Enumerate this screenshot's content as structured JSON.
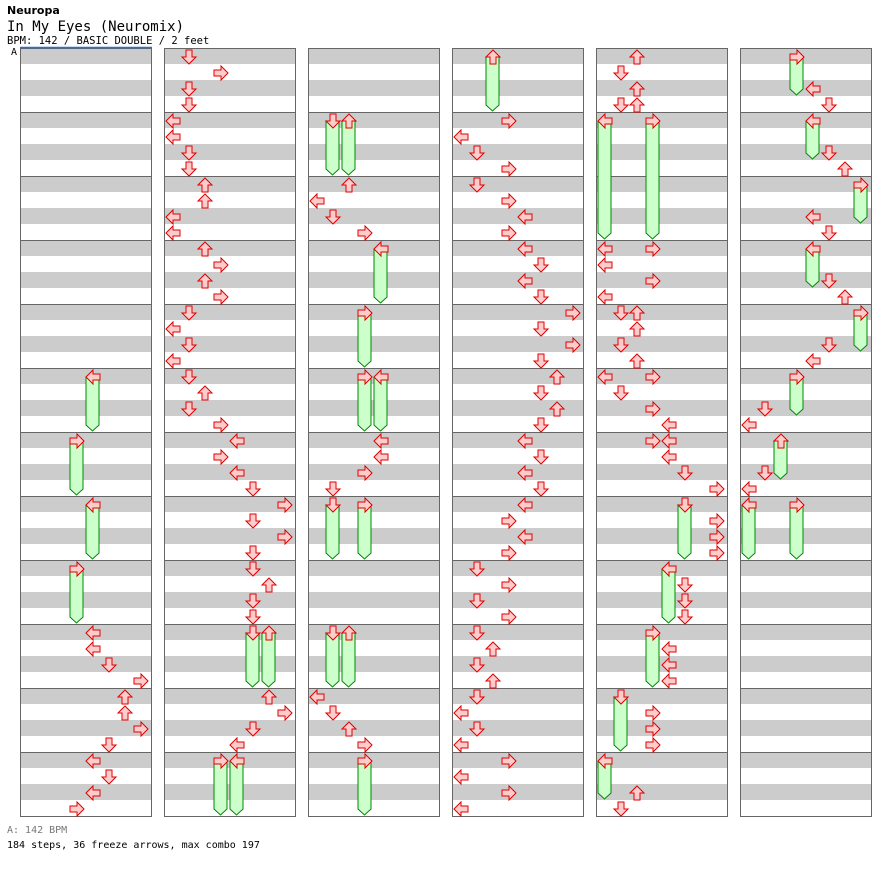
{
  "header": {
    "artist": "Neuropa",
    "title": "In My Eyes (Neuromix)",
    "meta": "BPM: 142 / BASIC DOUBLE / 2 feet",
    "bpm_marker": "A"
  },
  "footer": {
    "bpm_legend": "A: 142 BPM",
    "stats": "184 steps, 36 freeze arrows, max combo 197"
  },
  "colors": {
    "arrow_fill": "#ffcccc",
    "arrow_stroke": "#dd0000",
    "freeze_fill": "#ccffcc",
    "freeze_stroke": "#008800",
    "stripe": "#cccccc",
    "border": "#666666",
    "bpm_line": "#2a6fd6"
  },
  "lanes": [
    "left",
    "down",
    "up",
    "right",
    "left",
    "down",
    "up",
    "right"
  ],
  "measures_per_column": 12,
  "columns": 6,
  "notes": [
    [
      9,
      0,
      4
    ],
    [
      9,
      1,
      4
    ],
    [
      9,
      2,
      5
    ],
    [
      9,
      3,
      7
    ],
    [
      10,
      0,
      6
    ],
    [
      10,
      1,
      6
    ],
    [
      10,
      2,
      7
    ],
    [
      10,
      3,
      5
    ],
    [
      11,
      0,
      4
    ],
    [
      11,
      1,
      5
    ],
    [
      11,
      2,
      4
    ],
    [
      11,
      3,
      3
    ],
    [
      12,
      0,
      1
    ],
    [
      12,
      1,
      3
    ],
    [
      12,
      2,
      1
    ],
    [
      12,
      3,
      1
    ],
    [
      13,
      0,
      0
    ],
    [
      13,
      1,
      0
    ],
    [
      13,
      2,
      1
    ],
    [
      13,
      3,
      1
    ],
    [
      14,
      0,
      2
    ],
    [
      14,
      1,
      2
    ],
    [
      14,
      2,
      0
    ],
    [
      14,
      3,
      0
    ],
    [
      15,
      0,
      2
    ],
    [
      15,
      1,
      3
    ],
    [
      15,
      2,
      2
    ],
    [
      15,
      3,
      3
    ],
    [
      16,
      0,
      1
    ],
    [
      16,
      1,
      0
    ],
    [
      16,
      2,
      1
    ],
    [
      16,
      3,
      0
    ],
    [
      17,
      0,
      1
    ],
    [
      17,
      1,
      2
    ],
    [
      17,
      2,
      1
    ],
    [
      17,
      3,
      3
    ],
    [
      18,
      0,
      4
    ],
    [
      18,
      1,
      3
    ],
    [
      18,
      2,
      4
    ],
    [
      18,
      3,
      5
    ],
    [
      19,
      0,
      7
    ],
    [
      19,
      1,
      5
    ],
    [
      19,
      2,
      7
    ],
    [
      19,
      3,
      5
    ],
    [
      20,
      0,
      5
    ],
    [
      20,
      1,
      6
    ],
    [
      20,
      2,
      5
    ],
    [
      20,
      3,
      5
    ],
    [
      22,
      0,
      6
    ],
    [
      22,
      1,
      7
    ],
    [
      22,
      2,
      5
    ],
    [
      22,
      3,
      4
    ],
    [
      26,
      0,
      2
    ],
    [
      26,
      1,
      0
    ],
    [
      26,
      2,
      1
    ],
    [
      26,
      3,
      3
    ],
    [
      30,
      0,
      4
    ],
    [
      30,
      1,
      4
    ],
    [
      30,
      2,
      3
    ],
    [
      30,
      3,
      1
    ],
    [
      34,
      0,
      0
    ],
    [
      34,
      1,
      1
    ],
    [
      34,
      2,
      2
    ],
    [
      34,
      3,
      3
    ],
    [
      37,
      0,
      3
    ],
    [
      37,
      1,
      0
    ],
    [
      37,
      2,
      1
    ],
    [
      37,
      3,
      3
    ],
    [
      38,
      0,
      1
    ],
    [
      38,
      1,
      3
    ],
    [
      38,
      2,
      4
    ],
    [
      38,
      3,
      3
    ],
    [
      39,
      0,
      4
    ],
    [
      39,
      1,
      5
    ],
    [
      39,
      2,
      4
    ],
    [
      39,
      3,
      5
    ],
    [
      40,
      0,
      7
    ],
    [
      40,
      1,
      5
    ],
    [
      40,
      2,
      7
    ],
    [
      40,
      3,
      5
    ],
    [
      41,
      0,
      6
    ],
    [
      41,
      1,
      5
    ],
    [
      41,
      2,
      6
    ],
    [
      41,
      3,
      5
    ],
    [
      42,
      0,
      4
    ],
    [
      42,
      1,
      5
    ],
    [
      42,
      2,
      4
    ],
    [
      42,
      3,
      5
    ],
    [
      43,
      0,
      4
    ],
    [
      43,
      1,
      3
    ],
    [
      43,
      2,
      4
    ],
    [
      43,
      3,
      3
    ],
    [
      44,
      0,
      1
    ],
    [
      44,
      1,
      3
    ],
    [
      44,
      2,
      1
    ],
    [
      44,
      3,
      3
    ],
    [
      45,
      0,
      1
    ],
    [
      45,
      1,
      2
    ],
    [
      45,
      2,
      1
    ],
    [
      45,
      3,
      2
    ],
    [
      46,
      0,
      1
    ],
    [
      46,
      1,
      0
    ],
    [
      46,
      2,
      1
    ],
    [
      46,
      3,
      0
    ],
    [
      47,
      0,
      3
    ],
    [
      47,
      1,
      0
    ],
    [
      47,
      2,
      3
    ],
    [
      47,
      3,
      0
    ],
    [
      48,
      0,
      2
    ],
    [
      48,
      1,
      1
    ],
    [
      48,
      2,
      2
    ],
    [
      48,
      3,
      1
    ],
    [
      48,
      3,
      2
    ],
    [
      51,
      0,
      0
    ],
    [
      51,
      0,
      3
    ],
    [
      51,
      1,
      0
    ],
    [
      51,
      2,
      3
    ],
    [
      51,
      3,
      0
    ],
    [
      52,
      0,
      1
    ],
    [
      52,
      0,
      2
    ],
    [
      52,
      1,
      2
    ],
    [
      52,
      2,
      1
    ],
    [
      52,
      3,
      2
    ],
    [
      53,
      0,
      0
    ],
    [
      53,
      0,
      3
    ],
    [
      53,
      1,
      1
    ],
    [
      53,
      2,
      3
    ],
    [
      53,
      3,
      4
    ],
    [
      54,
      0,
      3
    ],
    [
      54,
      0,
      4
    ],
    [
      54,
      1,
      4
    ],
    [
      54,
      2,
      5
    ],
    [
      54,
      3,
      7
    ],
    [
      55,
      1,
      7
    ],
    [
      55,
      2,
      7
    ],
    [
      55,
      3,
      7
    ],
    [
      56,
      1,
      5
    ],
    [
      56,
      2,
      5
    ],
    [
      56,
      3,
      5
    ],
    [
      57,
      1,
      4
    ],
    [
      57,
      2,
      4
    ],
    [
      57,
      3,
      4
    ],
    [
      58,
      1,
      3
    ],
    [
      58,
      2,
      3
    ],
    [
      58,
      3,
      3
    ],
    [
      59,
      2,
      2
    ],
    [
      59,
      3,
      1
    ],
    [
      60,
      2,
      4
    ],
    [
      60,
      3,
      5
    ],
    [
      61,
      2,
      5
    ],
    [
      61,
      3,
      6
    ],
    [
      62,
      2,
      4
    ],
    [
      62,
      3,
      5
    ],
    [
      63,
      2,
      5
    ],
    [
      63,
      3,
      6
    ],
    [
      64,
      2,
      5
    ],
    [
      64,
      3,
      4
    ],
    [
      65,
      2,
      1
    ],
    [
      65,
      3,
      0
    ],
    [
      66,
      2,
      1
    ],
    [
      66,
      3,
      0
    ]
  ],
  "freezes": [
    [
      5,
      0,
      4,
      3.75
    ],
    [
      6,
      0,
      3,
      3.75
    ],
    [
      7,
      0,
      4,
      3.75
    ],
    [
      8,
      0,
      3,
      3.75
    ],
    [
      21,
      0,
      5,
      3.75
    ],
    [
      21,
      0,
      6,
      3.75
    ],
    [
      23,
      0,
      3,
      3.75
    ],
    [
      23,
      0,
      4,
      3.75
    ],
    [
      25,
      0,
      1,
      3.75
    ],
    [
      25,
      0,
      2,
      3.75
    ],
    [
      27,
      0,
      4,
      3.75
    ],
    [
      28,
      0,
      3,
      3.75
    ],
    [
      29,
      0,
      3,
      3.75
    ],
    [
      29,
      0,
      4,
      3.75
    ],
    [
      31,
      0,
      1,
      3.75
    ],
    [
      31,
      0,
      3,
      3.75
    ],
    [
      33,
      0,
      1,
      3.75
    ],
    [
      33,
      0,
      2,
      3.75
    ],
    [
      35,
      0,
      3,
      3.75
    ],
    [
      36,
      0,
      2,
      3.75
    ],
    [
      49,
      0,
      0,
      7.75
    ],
    [
      49,
      0,
      3,
      7.75
    ],
    [
      55,
      0,
      5,
      3.75
    ],
    [
      56,
      0,
      4,
      3.75
    ],
    [
      57,
      0,
      3,
      3.75
    ],
    [
      58,
      0,
      1,
      3.75
    ],
    [
      59,
      0,
      0,
      2.75
    ],
    [
      60,
      0,
      3,
      2.75
    ],
    [
      61,
      0,
      4,
      2.75
    ],
    [
      62,
      0,
      7,
      2.75
    ],
    [
      63,
      0,
      4,
      2.75
    ],
    [
      64,
      0,
      7,
      2.75
    ],
    [
      65,
      0,
      3,
      2.75
    ],
    [
      66,
      0,
      2,
      2.75
    ],
    [
      67,
      0,
      0,
      3.75
    ],
    [
      67,
      0,
      3,
      3.75
    ]
  ]
}
